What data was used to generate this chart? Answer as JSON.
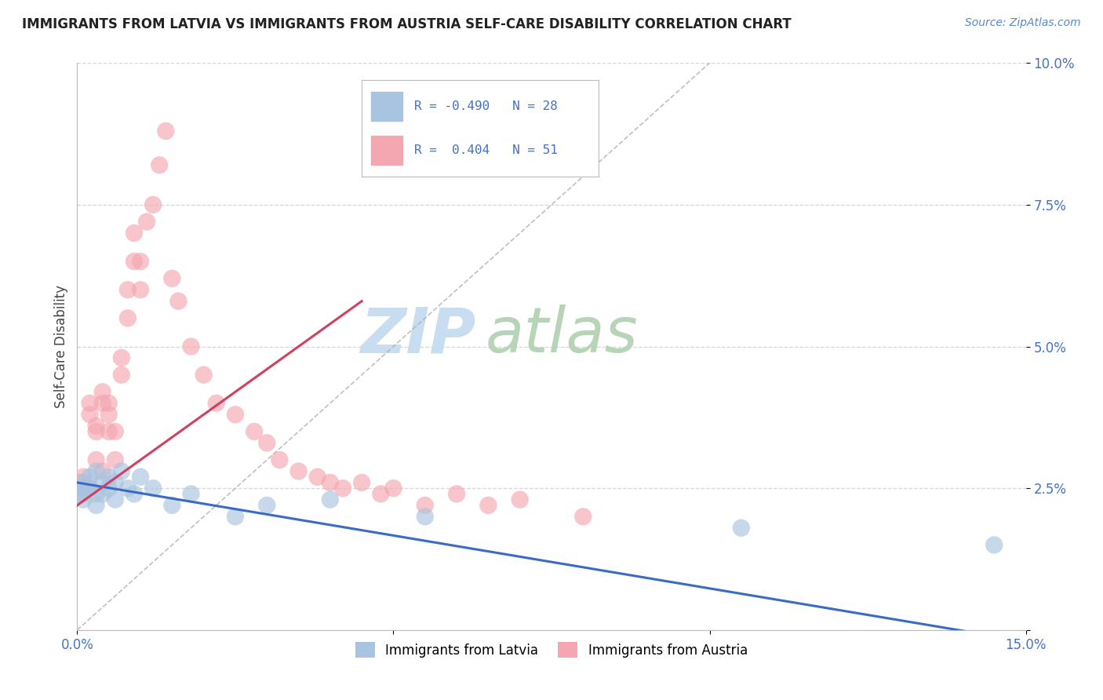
{
  "title": "IMMIGRANTS FROM LATVIA VS IMMIGRANTS FROM AUSTRIA SELF-CARE DISABILITY CORRELATION CHART",
  "source": "Source: ZipAtlas.com",
  "ylabel": "Self-Care Disability",
  "xlim": [
    0.0,
    0.15
  ],
  "ylim": [
    0.0,
    0.1
  ],
  "latvia_color": "#a8c4e0",
  "austria_color": "#f4a7b0",
  "latvia_line_color": "#3a6bc4",
  "austria_line_color": "#d04060",
  "latvia_R": -0.49,
  "latvia_N": 28,
  "austria_R": 0.404,
  "austria_N": 51,
  "background_color": "#ffffff",
  "grid_color": "#cccccc",
  "watermark_zip": "ZIP",
  "watermark_atlas": "atlas",
  "watermark_color_zip": "#c8ddf0",
  "watermark_color_atlas": "#c0d8c0",
  "latvia_scatter_x": [
    0.0005,
    0.001,
    0.001,
    0.001,
    0.002,
    0.002,
    0.003,
    0.003,
    0.003,
    0.004,
    0.004,
    0.005,
    0.005,
    0.006,
    0.006,
    0.007,
    0.008,
    0.009,
    0.01,
    0.012,
    0.015,
    0.018,
    0.025,
    0.03,
    0.04,
    0.055,
    0.105,
    0.145
  ],
  "latvia_scatter_y": [
    0.024,
    0.026,
    0.025,
    0.023,
    0.027,
    0.025,
    0.028,
    0.024,
    0.022,
    0.026,
    0.024,
    0.027,
    0.025,
    0.026,
    0.023,
    0.028,
    0.025,
    0.024,
    0.027,
    0.025,
    0.022,
    0.024,
    0.02,
    0.022,
    0.023,
    0.02,
    0.018,
    0.015
  ],
  "austria_scatter_x": [
    0.0005,
    0.001,
    0.001,
    0.001,
    0.002,
    0.002,
    0.002,
    0.003,
    0.003,
    0.003,
    0.004,
    0.004,
    0.004,
    0.005,
    0.005,
    0.005,
    0.006,
    0.006,
    0.007,
    0.007,
    0.008,
    0.008,
    0.009,
    0.009,
    0.01,
    0.01,
    0.011,
    0.012,
    0.013,
    0.014,
    0.015,
    0.016,
    0.018,
    0.02,
    0.022,
    0.025,
    0.028,
    0.03,
    0.032,
    0.035,
    0.038,
    0.04,
    0.042,
    0.045,
    0.048,
    0.05,
    0.055,
    0.06,
    0.065,
    0.07,
    0.08
  ],
  "austria_scatter_y": [
    0.026,
    0.024,
    0.025,
    0.027,
    0.025,
    0.038,
    0.04,
    0.03,
    0.035,
    0.036,
    0.028,
    0.04,
    0.042,
    0.035,
    0.038,
    0.04,
    0.03,
    0.035,
    0.045,
    0.048,
    0.055,
    0.06,
    0.065,
    0.07,
    0.06,
    0.065,
    0.072,
    0.075,
    0.082,
    0.088,
    0.062,
    0.058,
    0.05,
    0.045,
    0.04,
    0.038,
    0.035,
    0.033,
    0.03,
    0.028,
    0.027,
    0.026,
    0.025,
    0.026,
    0.024,
    0.025,
    0.022,
    0.024,
    0.022,
    0.023,
    0.02
  ]
}
